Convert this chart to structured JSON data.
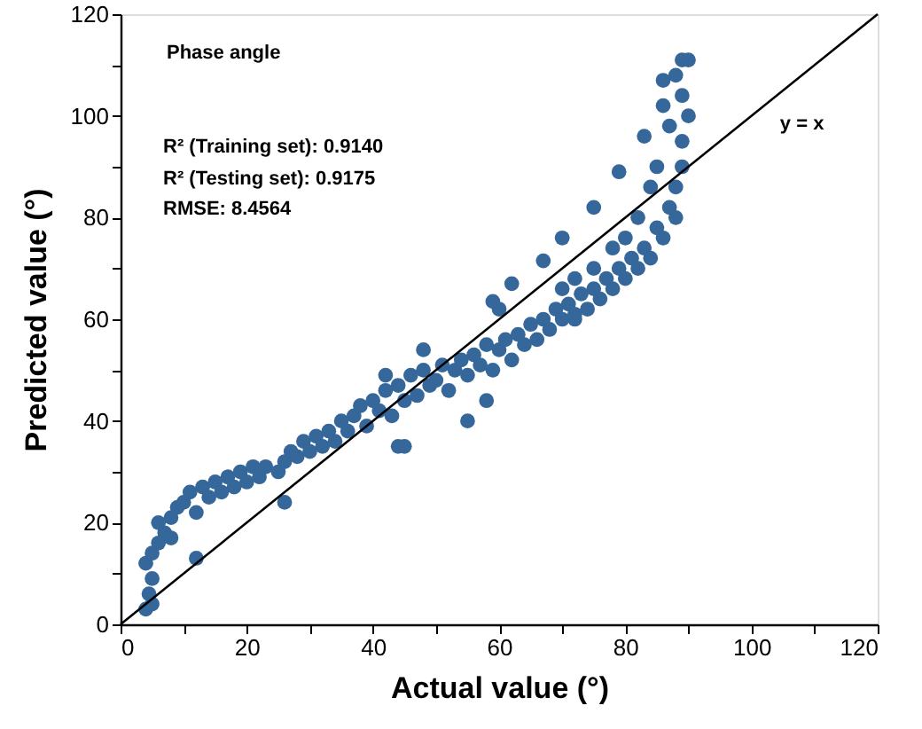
{
  "chart_data": {
    "type": "scatter",
    "xlabel": "Actual value (°)",
    "ylabel": "Predicted value (°)",
    "annotations": [
      "Phase angle",
      "R² (Training set): 0.9140",
      "R² (Testing set): 0.9175",
      "RMSE: 8.4564"
    ],
    "xlim": [
      0,
      120
    ],
    "ylim": [
      0,
      120
    ],
    "xticks": [
      0,
      {
        "value": 10,
        "label": null
      },
      20,
      {
        "value": 30,
        "label": null
      },
      40,
      {
        "value": 50,
        "label": null
      },
      60,
      {
        "value": 70,
        "label": null
      },
      80,
      {
        "value": 90,
        "label": null
      },
      100,
      {
        "value": 110,
        "label": null
      },
      120
    ],
    "yticks": [
      0,
      {
        "value": 10,
        "label": null
      },
      20,
      {
        "value": 30,
        "label": null
      },
      40,
      {
        "value": 50,
        "label": null
      },
      60,
      {
        "value": 70,
        "label": null
      },
      80,
      {
        "value": 90,
        "label": null
      },
      100,
      {
        "value": 110,
        "label": null
      },
      120
    ],
    "grid": false,
    "marker": "circle",
    "series": [
      {
        "color": "#35679a",
        "x": [
          4,
          4.5,
          5,
          4,
          5,
          6,
          7,
          6,
          8,
          9,
          10,
          8,
          11,
          12,
          13,
          14,
          15,
          16,
          17,
          18,
          19,
          20,
          21,
          22,
          23,
          25,
          26,
          27,
          28,
          29,
          30,
          31,
          32,
          33,
          34,
          35,
          36,
          37,
          38,
          39,
          40,
          41,
          42,
          43,
          44,
          45,
          46,
          47,
          48,
          49,
          50,
          51,
          52,
          53,
          54,
          55,
          56,
          57,
          58,
          59,
          60,
          61,
          62,
          63,
          64,
          65,
          66,
          67,
          68,
          69,
          70,
          71,
          72,
          73,
          74,
          75,
          76,
          77,
          78,
          79,
          80,
          81,
          82,
          83,
          84,
          85,
          86,
          87,
          88,
          88,
          89,
          89,
          90,
          89,
          88,
          90,
          86,
          87,
          85,
          84,
          82,
          80,
          78,
          75,
          72,
          70,
          59,
          62,
          67,
          70,
          75,
          79,
          83,
          86,
          89,
          44,
          45,
          55,
          26,
          12,
          5,
          58,
          72,
          42,
          48,
          60
        ],
        "values": [
          3,
          6,
          9,
          12,
          14,
          16,
          18,
          20,
          21,
          23,
          24,
          17,
          26,
          22,
          27,
          25,
          28,
          26,
          29,
          27,
          30,
          28,
          31,
          29,
          31,
          30,
          32,
          34,
          33,
          36,
          34,
          37,
          35,
          38,
          36,
          40,
          38,
          41,
          43,
          39,
          44,
          42,
          46,
          41,
          47,
          44,
          49,
          45,
          50,
          47,
          48,
          51,
          46,
          50,
          52,
          49,
          53,
          51,
          55,
          50,
          54,
          56,
          52,
          57,
          55,
          59,
          56,
          60,
          58,
          62,
          60,
          63,
          61,
          65,
          62,
          66,
          64,
          68,
          66,
          70,
          68,
          72,
          70,
          74,
          72,
          78,
          76,
          82,
          80,
          86,
          90,
          95,
          100,
          104,
          108,
          111,
          102,
          98,
          90,
          86,
          80,
          76,
          74,
          70,
          68,
          66,
          63.5,
          67,
          71.5,
          76,
          82,
          89,
          96,
          107,
          111,
          35,
          35,
          40,
          24,
          13,
          4,
          44,
          60,
          49,
          54,
          62
        ]
      },
      {
        "type": "line",
        "name": "y = x",
        "color": "#000000",
        "line_style": "solid",
        "marker": "none",
        "x": [
          0,
          120
        ],
        "values": [
          0,
          120
        ]
      }
    ]
  }
}
